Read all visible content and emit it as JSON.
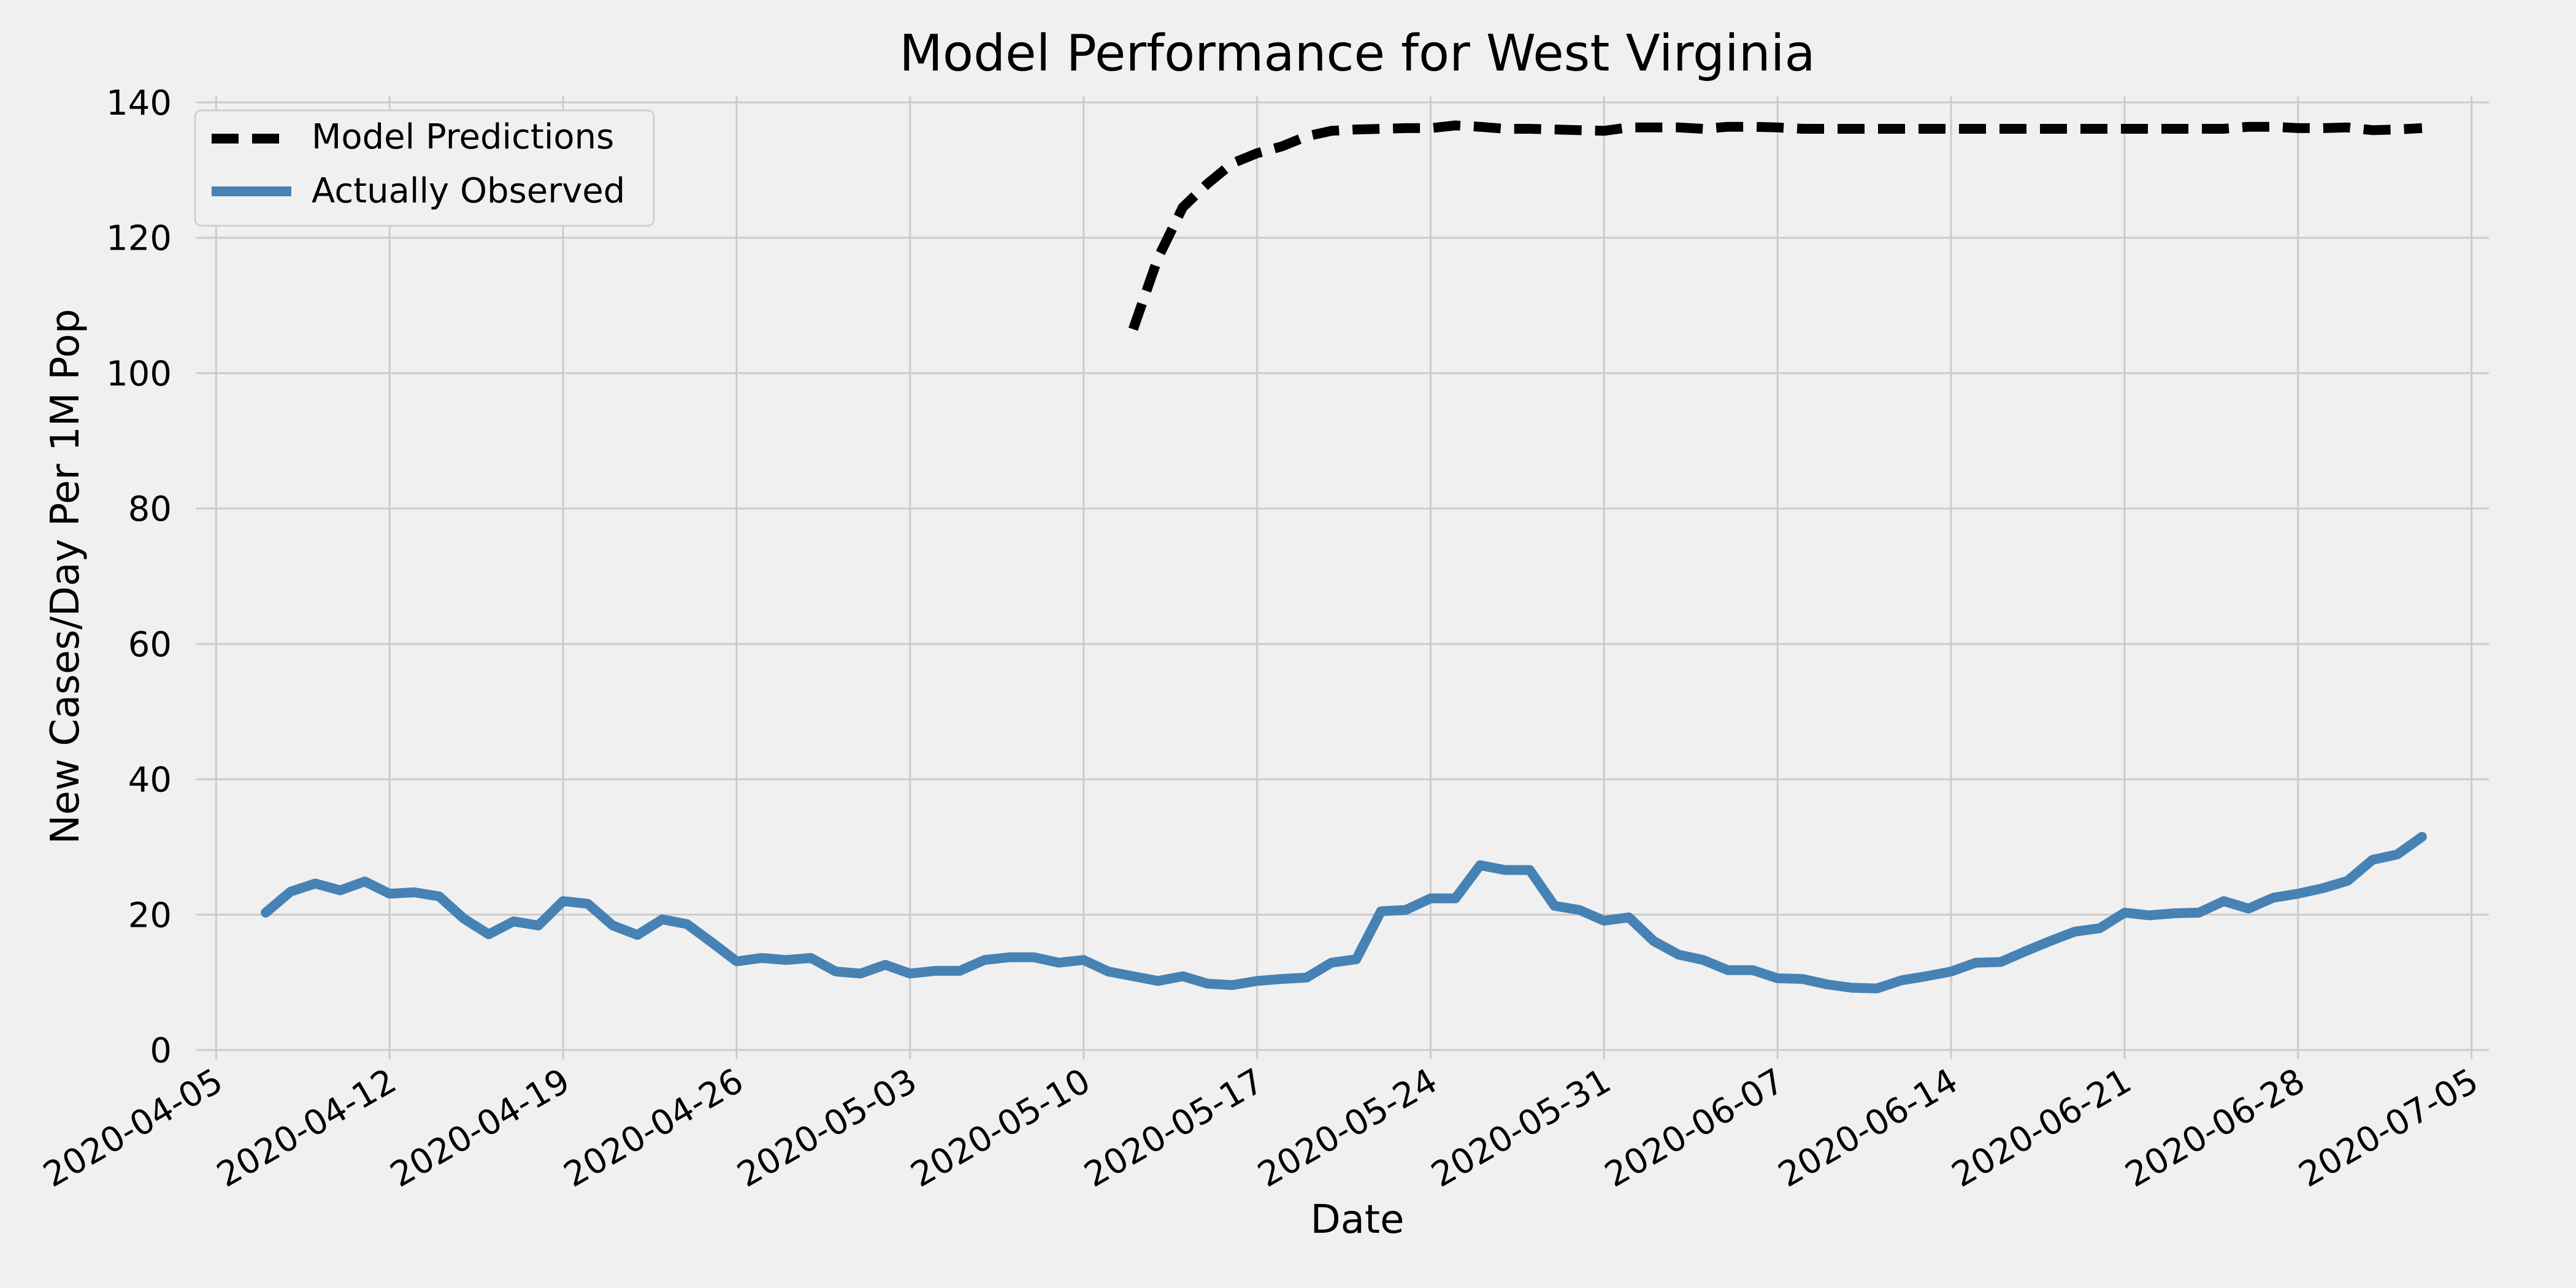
{
  "chart_data": {
    "type": "line",
    "title": "Model Performance for West Virginia",
    "xlabel": "Date",
    "ylabel": "New Cases/Day Per 1M Pop",
    "xlim": [
      "2020-04-05",
      "2020-07-05"
    ],
    "ylim": [
      0,
      140
    ],
    "x_ticks": [
      "2020-04-05",
      "2020-04-12",
      "2020-04-19",
      "2020-04-26",
      "2020-05-03",
      "2020-05-10",
      "2020-05-17",
      "2020-05-24",
      "2020-05-31",
      "2020-06-07",
      "2020-06-14",
      "2020-06-21",
      "2020-06-28",
      "2020-07-05"
    ],
    "y_ticks": [
      0,
      20,
      40,
      60,
      80,
      100,
      120,
      140
    ],
    "grid": true,
    "legend_position": "top-left",
    "series": [
      {
        "name": "Model Predictions",
        "color": "#000000",
        "style": "dashed",
        "x": [
          "2020-05-12",
          "2020-05-13",
          "2020-05-14",
          "2020-05-15",
          "2020-05-16",
          "2020-05-17",
          "2020-05-18",
          "2020-05-19",
          "2020-05-20",
          "2020-05-21",
          "2020-05-22",
          "2020-05-23",
          "2020-05-24",
          "2020-05-25",
          "2020-05-26",
          "2020-05-27",
          "2020-05-28",
          "2020-05-29",
          "2020-05-30",
          "2020-05-31",
          "2020-06-01",
          "2020-06-02",
          "2020-06-03",
          "2020-06-04",
          "2020-06-05",
          "2020-06-06",
          "2020-06-07",
          "2020-06-08",
          "2020-06-09",
          "2020-06-10",
          "2020-06-11",
          "2020-06-12",
          "2020-06-13",
          "2020-06-14",
          "2020-06-15",
          "2020-06-16",
          "2020-06-17",
          "2020-06-18",
          "2020-06-19",
          "2020-06-20",
          "2020-06-21",
          "2020-06-22",
          "2020-06-23",
          "2020-06-24",
          "2020-06-25",
          "2020-06-26",
          "2020-06-27",
          "2020-06-28",
          "2020-06-29",
          "2020-06-30",
          "2020-07-01",
          "2020-07-02",
          "2020-07-03"
        ],
        "values": [
          106.5,
          117.0,
          124.5,
          128.0,
          131.0,
          132.5,
          133.5,
          135.0,
          135.8,
          136.0,
          136.1,
          136.2,
          136.2,
          136.6,
          136.4,
          136.1,
          136.1,
          136.0,
          135.9,
          135.8,
          136.3,
          136.3,
          136.3,
          136.1,
          136.4,
          136.4,
          136.3,
          136.1,
          136.1,
          136.1,
          136.1,
          136.1,
          136.1,
          136.1,
          136.1,
          136.1,
          136.1,
          136.1,
          136.1,
          136.1,
          136.1,
          136.1,
          136.1,
          136.1,
          136.1,
          136.4,
          136.4,
          136.2,
          136.2,
          136.3,
          135.9,
          136.0,
          136.2
        ]
      },
      {
        "name": "Actually Observed",
        "color": "#4682b4",
        "style": "solid",
        "x": [
          "2020-04-07",
          "2020-04-08",
          "2020-04-09",
          "2020-04-10",
          "2020-04-11",
          "2020-04-12",
          "2020-04-13",
          "2020-04-14",
          "2020-04-15",
          "2020-04-16",
          "2020-04-17",
          "2020-04-18",
          "2020-04-19",
          "2020-04-20",
          "2020-04-21",
          "2020-04-22",
          "2020-04-23",
          "2020-04-24",
          "2020-04-25",
          "2020-04-26",
          "2020-04-27",
          "2020-04-28",
          "2020-04-29",
          "2020-04-30",
          "2020-05-01",
          "2020-05-02",
          "2020-05-03",
          "2020-05-04",
          "2020-05-05",
          "2020-05-06",
          "2020-05-07",
          "2020-05-08",
          "2020-05-09",
          "2020-05-10",
          "2020-05-11",
          "2020-05-12",
          "2020-05-13",
          "2020-05-14",
          "2020-05-15",
          "2020-05-16",
          "2020-05-17",
          "2020-05-18",
          "2020-05-19",
          "2020-05-20",
          "2020-05-21",
          "2020-05-22",
          "2020-05-23",
          "2020-05-24",
          "2020-05-25",
          "2020-05-26",
          "2020-05-27",
          "2020-05-28",
          "2020-05-29",
          "2020-05-30",
          "2020-05-31",
          "2020-06-01",
          "2020-06-02",
          "2020-06-03",
          "2020-06-04",
          "2020-06-05",
          "2020-06-06",
          "2020-06-07",
          "2020-06-08",
          "2020-06-09",
          "2020-06-10",
          "2020-06-11",
          "2020-06-12",
          "2020-06-13",
          "2020-06-14",
          "2020-06-15",
          "2020-06-16",
          "2020-06-17",
          "2020-06-18",
          "2020-06-19",
          "2020-06-20",
          "2020-06-21",
          "2020-06-22",
          "2020-06-23",
          "2020-06-24",
          "2020-06-25",
          "2020-06-26",
          "2020-06-27",
          "2020-06-28",
          "2020-06-29",
          "2020-06-30",
          "2020-07-01",
          "2020-07-02",
          "2020-07-03"
        ],
        "values": [
          20.3,
          23.4,
          24.6,
          23.6,
          24.9,
          23.1,
          23.3,
          22.7,
          19.4,
          17.1,
          19.0,
          18.4,
          22.0,
          21.6,
          18.4,
          17.0,
          19.3,
          18.6,
          15.9,
          13.1,
          13.6,
          13.3,
          13.6,
          11.6,
          11.3,
          12.6,
          11.3,
          11.7,
          11.7,
          13.3,
          13.7,
          13.7,
          12.9,
          13.3,
          11.6,
          10.9,
          10.2,
          10.9,
          9.8,
          9.6,
          10.2,
          10.5,
          10.7,
          12.9,
          13.4,
          20.5,
          20.7,
          22.4,
          22.4,
          27.3,
          26.6,
          26.6,
          21.3,
          20.7,
          19.1,
          19.6,
          16.1,
          14.1,
          13.3,
          11.8,
          11.8,
          10.6,
          10.5,
          9.7,
          9.2,
          9.1,
          10.3,
          10.9,
          11.6,
          12.9,
          13.0,
          14.6,
          16.1,
          17.5,
          18.0,
          20.3,
          19.9,
          20.2,
          20.3,
          22.0,
          20.9,
          22.5,
          23.1,
          23.9,
          25.0,
          28.1,
          28.9,
          31.5
        ]
      }
    ]
  }
}
